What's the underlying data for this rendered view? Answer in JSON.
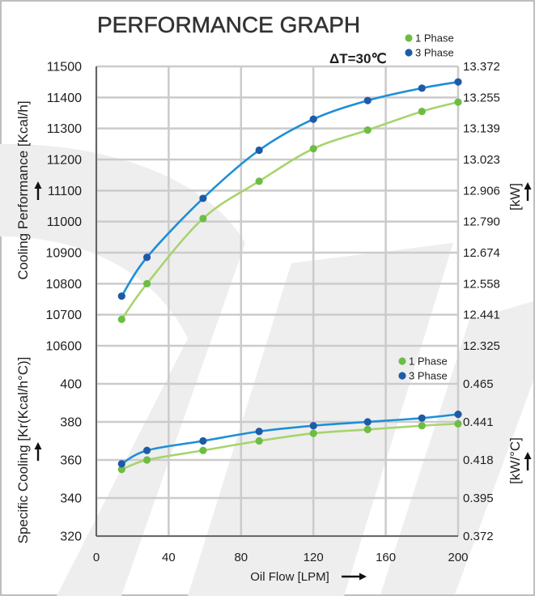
{
  "title": "PERFORMANCE GRAPH",
  "chart_data": [
    {
      "type": "line",
      "annotation": "ΔT=30℃",
      "ylabel": "Cooling Performance [Kcal/h]",
      "y2label": "[kW]",
      "xlim": [
        0,
        200
      ],
      "ylim": [
        10600,
        11500
      ],
      "yticks": [
        10600,
        10700,
        10800,
        10900,
        11000,
        11100,
        11200,
        11300,
        11400,
        11500
      ],
      "y2lim": [
        12.325,
        13.372
      ],
      "y2ticks": [
        "12.325",
        "12.441",
        "12.558",
        "12.674",
        "12.790",
        "12.906",
        "13.023",
        "13.139",
        "13.255",
        "13.372"
      ],
      "grid": true,
      "legend_position": "top-right",
      "series": [
        {
          "name": "1 Phase",
          "color": "#6dbd45",
          "line_color": "#a7d46c",
          "x": [
            14,
            28,
            59,
            90,
            120,
            150,
            180,
            200
          ],
          "y": [
            10685,
            10800,
            11010,
            11130,
            11235,
            11295,
            11355,
            11385
          ]
        },
        {
          "name": "3 Phase",
          "color": "#1f5aa8",
          "line_color": "#1d8fd6",
          "x": [
            14,
            28,
            59,
            90,
            120,
            150,
            180,
            200
          ],
          "y": [
            10760,
            10885,
            11075,
            11230,
            11330,
            11390,
            11430,
            11450
          ]
        }
      ]
    },
    {
      "type": "line",
      "xlabel": "Oil Flow [LPM]",
      "ylabel": "Specific Cooling [Kr(Kcal/h°C)]",
      "y2label": "[kW/°C]",
      "xlim": [
        0,
        200
      ],
      "xticks": [
        0,
        40,
        80,
        120,
        160,
        200
      ],
      "ylim": [
        320,
        400
      ],
      "yticks": [
        320,
        340,
        360,
        380,
        400
      ],
      "y2lim": [
        0.372,
        0.465
      ],
      "y2ticks": [
        "0.372",
        "0.395",
        "0.418",
        "0.441",
        "0.465"
      ],
      "grid": true,
      "legend_position": "top-right",
      "series": [
        {
          "name": "1 Phase",
          "color": "#6dbd45",
          "line_color": "#a7d46c",
          "x": [
            14,
            28,
            59,
            90,
            120,
            150,
            180,
            200
          ],
          "y": [
            355,
            360,
            365,
            370,
            374,
            376,
            378,
            379
          ]
        },
        {
          "name": "3 Phase",
          "color": "#1f5aa8",
          "line_color": "#1d8fd6",
          "x": [
            14,
            28,
            59,
            90,
            120,
            150,
            180,
            200
          ],
          "y": [
            358,
            365,
            370,
            375,
            378,
            380,
            382,
            384
          ]
        }
      ]
    }
  ]
}
